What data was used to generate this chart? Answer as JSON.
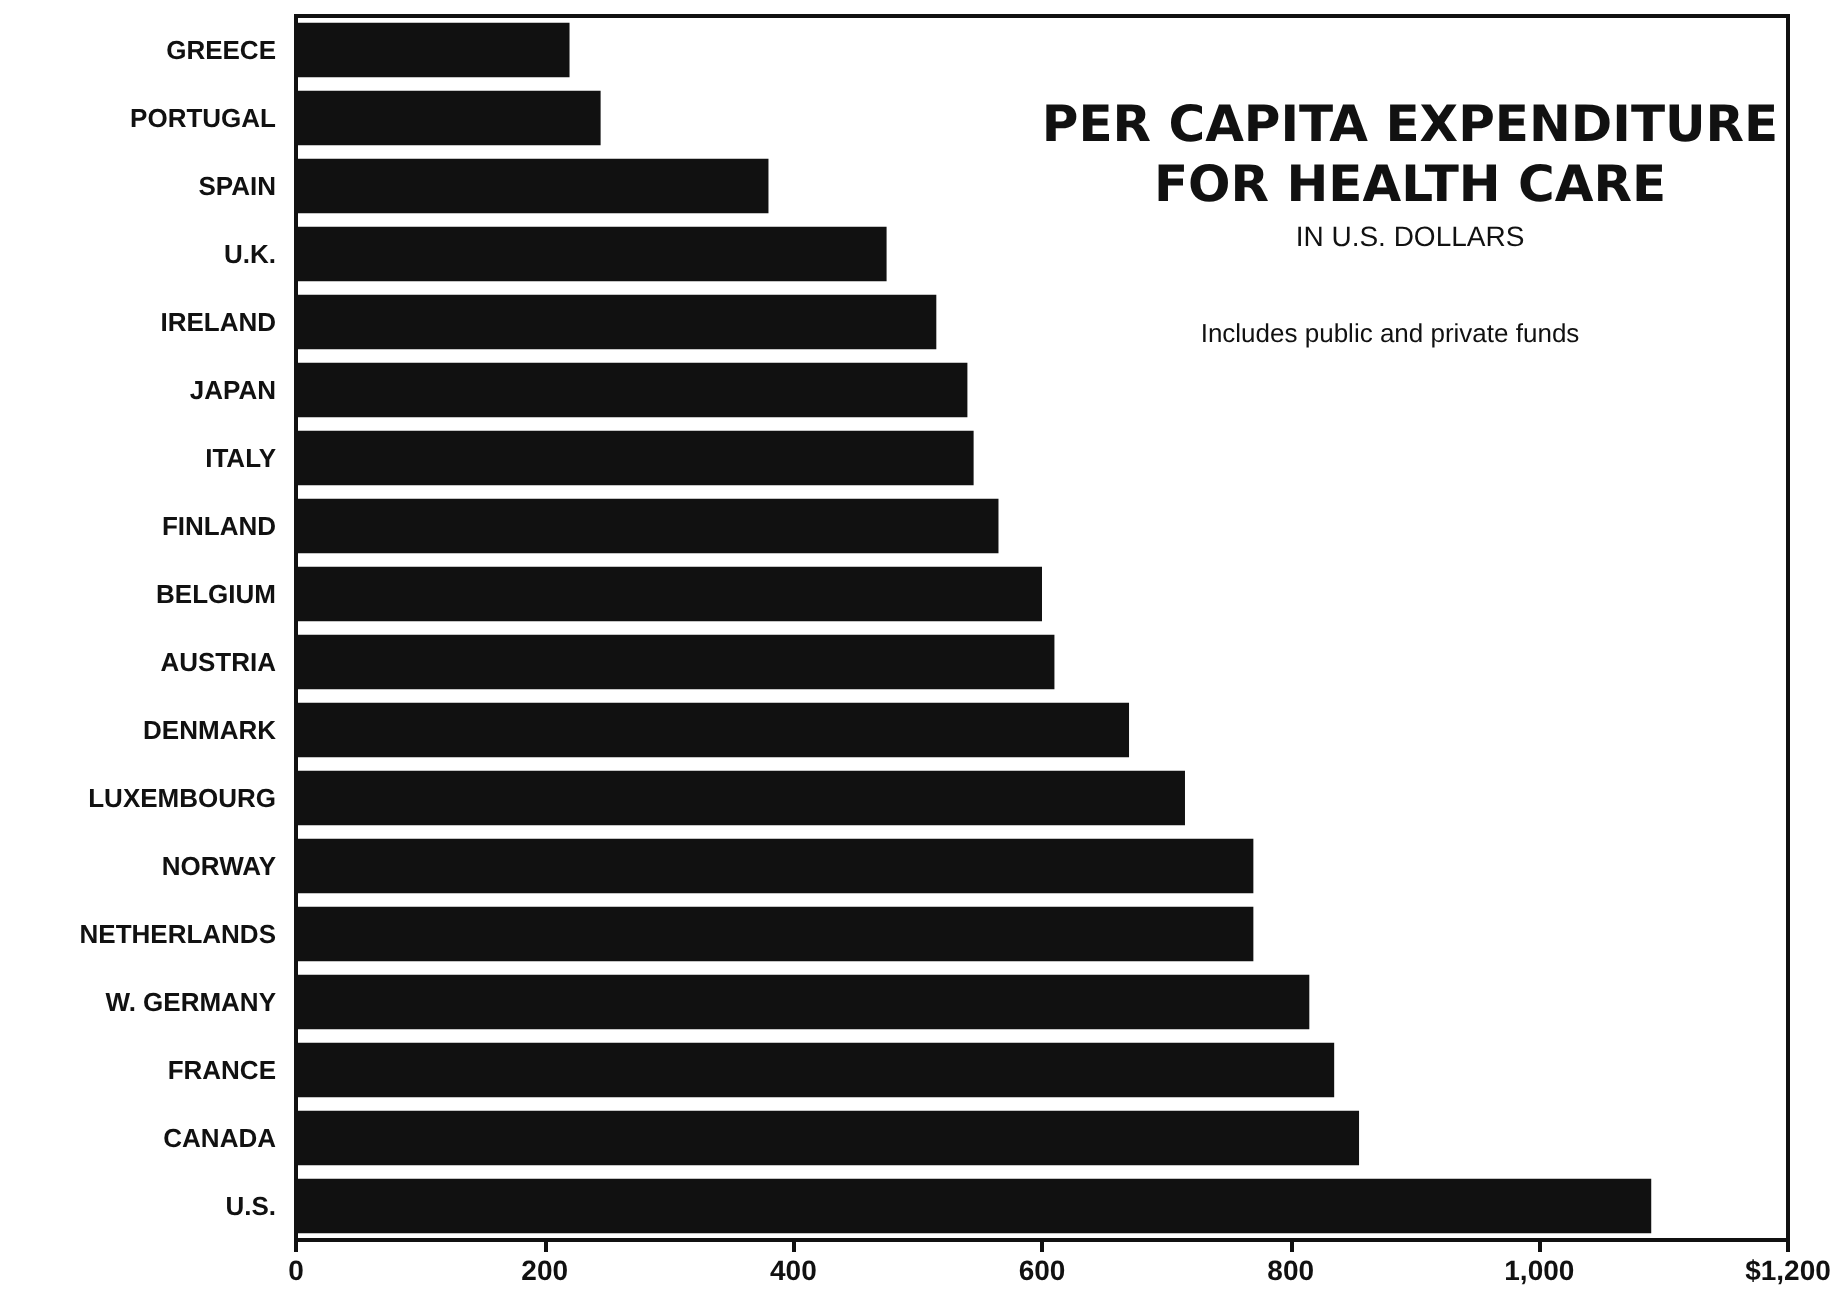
{
  "chart_data": {
    "type": "bar",
    "orientation": "horizontal",
    "title": "PER CAPITA EXPENDITURE\nFOR HEALTH CARE",
    "subtitle": "IN U.S. DOLLARS",
    "annotations": [
      "Includes public and private funds"
    ],
    "categories": [
      "GREECE",
      "PORTUGAL",
      "SPAIN",
      "U.K.",
      "IRELAND",
      "JAPAN",
      "ITALY",
      "FINLAND",
      "BELGIUM",
      "AUSTRIA",
      "DENMARK",
      "LUXEMBOURG",
      "NORWAY",
      "NETHERLANDS",
      "W. GERMANY",
      "FRANCE",
      "CANADA",
      "U.S."
    ],
    "values": [
      220,
      245,
      380,
      475,
      515,
      540,
      545,
      565,
      600,
      610,
      670,
      715,
      770,
      770,
      815,
      835,
      855,
      1090
    ],
    "color": "#111111",
    "xlim": [
      0,
      1200
    ],
    "xticks": [
      0,
      200,
      400,
      600,
      800,
      {
        "value": 1000,
        "label": "1,000"
      },
      {
        "value": 1200,
        "label": "$1,200"
      }
    ],
    "grid": false
  }
}
